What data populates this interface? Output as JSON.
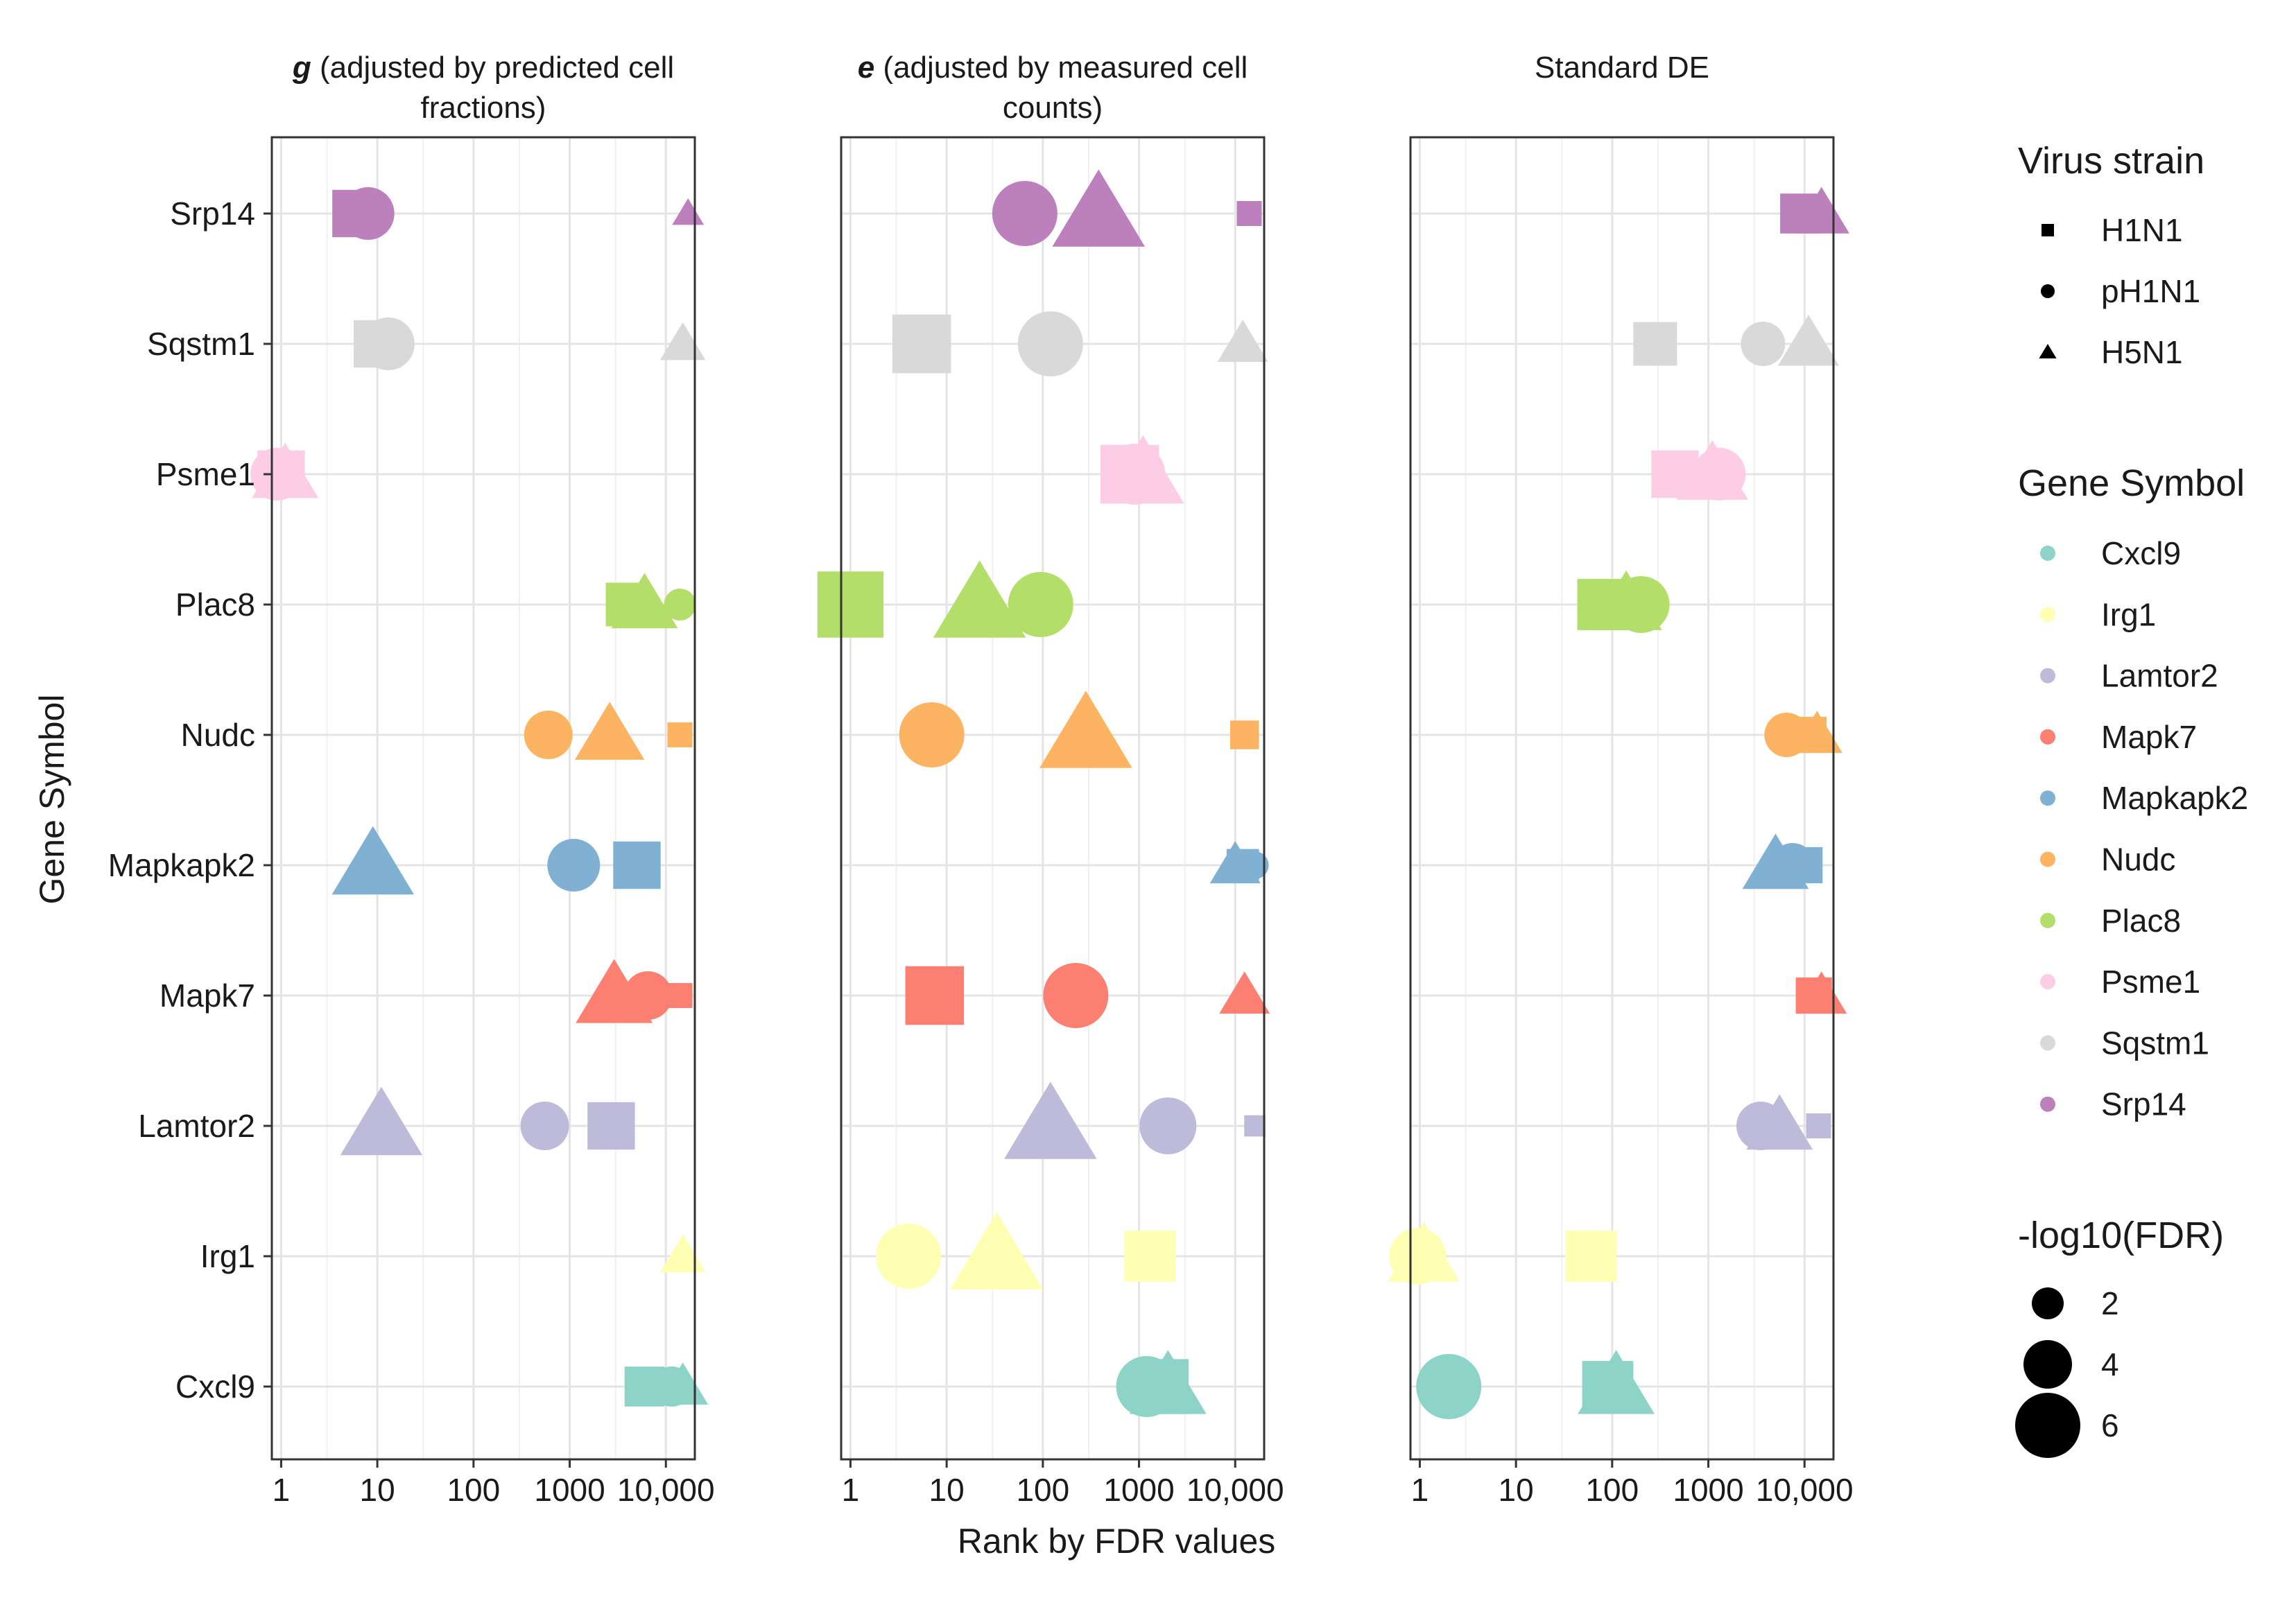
{
  "chart_data": {
    "type": "scatter",
    "xlabel": "Rank by FDR values",
    "ylabel": "Gene Symbol",
    "x_scale": "log10",
    "xlim": [
      0.8,
      20000
    ],
    "x_ticks": [
      1,
      10,
      100,
      1000,
      10000
    ],
    "x_tick_labels": [
      "1",
      "10",
      "100",
      "1000",
      "10,000"
    ],
    "genes": [
      "Srp14",
      "Sqstm1",
      "Psme1",
      "Plac8",
      "Nudc",
      "Mapkapk2",
      "Mapk7",
      "Lamtor2",
      "Irg1",
      "Cxcl9"
    ],
    "gene_colors": {
      "Cxcl9": "#8dd3c7",
      "Irg1": "#ffffb3",
      "Lamtor2": "#bebada",
      "Mapk7": "#fb8072",
      "Mapkapk2": "#80b1d3",
      "Nudc": "#fdb462",
      "Plac8": "#b3de69",
      "Psme1": "#fccde5",
      "Sqstm1": "#d9d9d9",
      "Srp14": "#bc80bd"
    },
    "panels": [
      {
        "title_bold": "g",
        "title_line1": " (adjusted by predicted cell",
        "title_line2": "fractions)",
        "points": [
          {
            "gene": "Srp14",
            "strain": "H1N1",
            "rank": 6,
            "fdr": 4.5
          },
          {
            "gene": "Srp14",
            "strain": "pH1N1",
            "rank": 8,
            "fdr": 4.5
          },
          {
            "gene": "Srp14",
            "strain": "H5N1",
            "rank": 17000,
            "fdr": 1.2
          },
          {
            "gene": "Sqstm1",
            "strain": "H1N1",
            "rank": 10,
            "fdr": 4.5
          },
          {
            "gene": "Sqstm1",
            "strain": "pH1N1",
            "rank": 13,
            "fdr": 4.5
          },
          {
            "gene": "Sqstm1",
            "strain": "H5N1",
            "rank": 15000,
            "fdr": 2.5
          },
          {
            "gene": "Psme1",
            "strain": "pH1N1",
            "rank": 0.9,
            "fdr": 4.5
          },
          {
            "gene": "Psme1",
            "strain": "H1N1",
            "rank": 1,
            "fdr": 4.5
          },
          {
            "gene": "Psme1",
            "strain": "H5N1",
            "rank": 1.1,
            "fdr": 4.5
          },
          {
            "gene": "Plac8",
            "strain": "H1N1",
            "rank": 4000,
            "fdr": 4
          },
          {
            "gene": "Plac8",
            "strain": "H5N1",
            "rank": 6000,
            "fdr": 4.5
          },
          {
            "gene": "Plac8",
            "strain": "pH1N1",
            "rank": 14000,
            "fdr": 2
          },
          {
            "gene": "Nudc",
            "strain": "pH1N1",
            "rank": 600,
            "fdr": 4
          },
          {
            "gene": "Nudc",
            "strain": "H5N1",
            "rank": 2600,
            "fdr": 4.8
          },
          {
            "gene": "Nudc",
            "strain": "H1N1",
            "rank": 14000,
            "fdr": 1.5
          },
          {
            "gene": "Mapkapk2",
            "strain": "H5N1",
            "rank": 9,
            "fdr": 6
          },
          {
            "gene": "Mapkapk2",
            "strain": "pH1N1",
            "rank": 1100,
            "fdr": 4.5
          },
          {
            "gene": "Mapkapk2",
            "strain": "H1N1",
            "rank": 5000,
            "fdr": 4.5
          },
          {
            "gene": "Mapk7",
            "strain": "H5N1",
            "rank": 2900,
            "fdr": 5.5
          },
          {
            "gene": "Mapk7",
            "strain": "pH1N1",
            "rank": 6500,
            "fdr": 4
          },
          {
            "gene": "Mapk7",
            "strain": "H1N1",
            "rank": 14000,
            "fdr": 1.5
          },
          {
            "gene": "Lamtor2",
            "strain": "H5N1",
            "rank": 11,
            "fdr": 6
          },
          {
            "gene": "Lamtor2",
            "strain": "pH1N1",
            "rank": 550,
            "fdr": 4
          },
          {
            "gene": "Lamtor2",
            "strain": "H1N1",
            "rank": 2700,
            "fdr": 4.5
          },
          {
            "gene": "Irg1",
            "strain": "H5N1",
            "rank": 15000,
            "fdr": 2.5
          },
          {
            "gene": "Cxcl9",
            "strain": "H1N1",
            "rank": 6000,
            "fdr": 3.5
          },
          {
            "gene": "Cxcl9",
            "strain": "pH1N1",
            "rank": 11500,
            "fdr": 3
          },
          {
            "gene": "Cxcl9",
            "strain": "H5N1",
            "rank": 15000,
            "fdr": 3
          }
        ]
      },
      {
        "title_bold": "e",
        "title_line1": " (adjusted by measured cell",
        "title_line2": "counts)",
        "points": [
          {
            "gene": "Srp14",
            "strain": "pH1N1",
            "rank": 65,
            "fdr": 6
          },
          {
            "gene": "Srp14",
            "strain": "H5N1",
            "rank": 380,
            "fdr": 7
          },
          {
            "gene": "Srp14",
            "strain": "H1N1",
            "rank": 14000,
            "fdr": 1.5
          },
          {
            "gene": "Sqstm1",
            "strain": "H1N1",
            "rank": 5.5,
            "fdr": 6
          },
          {
            "gene": "Sqstm1",
            "strain": "pH1N1",
            "rank": 120,
            "fdr": 6
          },
          {
            "gene": "Sqstm1",
            "strain": "H5N1",
            "rank": 12000,
            "fdr": 3
          },
          {
            "gene": "Psme1",
            "strain": "H1N1",
            "rank": 800,
            "fdr": 6
          },
          {
            "gene": "Psme1",
            "strain": "pH1N1",
            "rank": 900,
            "fdr": 5.5
          },
          {
            "gene": "Psme1",
            "strain": "H5N1",
            "rank": 1100,
            "fdr": 6
          },
          {
            "gene": "Plac8",
            "strain": "H1N1",
            "rank": 1,
            "fdr": 7
          },
          {
            "gene": "Plac8",
            "strain": "H5N1",
            "rank": 22,
            "fdr": 7
          },
          {
            "gene": "Plac8",
            "strain": "pH1N1",
            "rank": 95,
            "fdr": 6
          },
          {
            "gene": "Nudc",
            "strain": "pH1N1",
            "rank": 7,
            "fdr": 6
          },
          {
            "gene": "Nudc",
            "strain": "H5N1",
            "rank": 280,
            "fdr": 7
          },
          {
            "gene": "Nudc",
            "strain": "H1N1",
            "rank": 12500,
            "fdr": 2
          },
          {
            "gene": "Mapkapk2",
            "strain": "H5N1",
            "rank": 10000,
            "fdr": 3
          },
          {
            "gene": "Mapkapk2",
            "strain": "H1N1",
            "rank": 12000,
            "fdr": 2.5
          },
          {
            "gene": "Mapkapk2",
            "strain": "pH1N1",
            "rank": 16000,
            "fdr": 1.5
          },
          {
            "gene": "Mapk7",
            "strain": "H1N1",
            "rank": 7.5,
            "fdr": 6
          },
          {
            "gene": "Mapk7",
            "strain": "pH1N1",
            "rank": 220,
            "fdr": 6
          },
          {
            "gene": "Mapk7",
            "strain": "H5N1",
            "rank": 12500,
            "fdr": 3
          },
          {
            "gene": "Lamtor2",
            "strain": "H5N1",
            "rank": 120,
            "fdr": 7
          },
          {
            "gene": "Lamtor2",
            "strain": "pH1N1",
            "rank": 2000,
            "fdr": 5
          },
          {
            "gene": "Lamtor2",
            "strain": "H1N1",
            "rank": 16000,
            "fdr": 1
          },
          {
            "gene": "Irg1",
            "strain": "pH1N1",
            "rank": 4,
            "fdr": 6
          },
          {
            "gene": "Irg1",
            "strain": "H5N1",
            "rank": 33,
            "fdr": 7
          },
          {
            "gene": "Irg1",
            "strain": "H1N1",
            "rank": 1300,
            "fdr": 5
          },
          {
            "gene": "Cxcl9",
            "strain": "pH1N1",
            "rank": 1200,
            "fdr": 5.5
          },
          {
            "gene": "Cxcl9",
            "strain": "H1N1",
            "rank": 1700,
            "fdr": 5.5
          },
          {
            "gene": "Cxcl9",
            "strain": "H5N1",
            "rank": 2000,
            "fdr": 5.5
          }
        ]
      },
      {
        "title_bold": "",
        "title_line1": "Standard DE",
        "title_line2": "",
        "points": [
          {
            "gene": "Srp14",
            "strain": "H1N1",
            "rank": 9000,
            "fdr": 3.5
          },
          {
            "gene": "Srp14",
            "strain": "H5N1",
            "rank": 15000,
            "fdr": 3.5
          },
          {
            "gene": "Sqstm1",
            "strain": "H1N1",
            "rank": 280,
            "fdr": 4
          },
          {
            "gene": "Sqstm1",
            "strain": "pH1N1",
            "rank": 3700,
            "fdr": 3.5
          },
          {
            "gene": "Sqstm1",
            "strain": "H5N1",
            "rank": 11000,
            "fdr": 4
          },
          {
            "gene": "Psme1",
            "strain": "H1N1",
            "rank": 450,
            "fdr": 4.5
          },
          {
            "gene": "Psme1",
            "strain": "H5N1",
            "rank": 1100,
            "fdr": 5
          },
          {
            "gene": "Psme1",
            "strain": "pH1N1",
            "rank": 1300,
            "fdr": 4.5
          },
          {
            "gene": "Plac8",
            "strain": "H1N1",
            "rank": 80,
            "fdr": 5
          },
          {
            "gene": "Plac8",
            "strain": "H5N1",
            "rank": 140,
            "fdr": 5
          },
          {
            "gene": "Plac8",
            "strain": "pH1N1",
            "rank": 200,
            "fdr": 5
          },
          {
            "gene": "Nudc",
            "strain": "pH1N1",
            "rank": 6500,
            "fdr": 3.5
          },
          {
            "gene": "Nudc",
            "strain": "H1N1",
            "rank": 11000,
            "fdr": 3
          },
          {
            "gene": "Nudc",
            "strain": "H5N1",
            "rank": 13500,
            "fdr": 3
          },
          {
            "gene": "Mapkapk2",
            "strain": "H5N1",
            "rank": 5000,
            "fdr": 4.5
          },
          {
            "gene": "Mapkapk2",
            "strain": "pH1N1",
            "rank": 7500,
            "fdr": 3.5
          },
          {
            "gene": "Mapkapk2",
            "strain": "H1N1",
            "rank": 10000,
            "fdr": 3
          },
          {
            "gene": "Mapk7",
            "strain": "H1N1",
            "rank": 12500,
            "fdr": 3
          },
          {
            "gene": "Mapk7",
            "strain": "H5N1",
            "rank": 15000,
            "fdr": 3
          },
          {
            "gene": "Lamtor2",
            "strain": "pH1N1",
            "rank": 3500,
            "fdr": 4
          },
          {
            "gene": "Lamtor2",
            "strain": "H5N1",
            "rank": 5500,
            "fdr": 4.5
          },
          {
            "gene": "Lamtor2",
            "strain": "H1N1",
            "rank": 14000,
            "fdr": 1.5
          },
          {
            "gene": "Irg1",
            "strain": "pH1N1",
            "rank": 0.95,
            "fdr": 5
          },
          {
            "gene": "Irg1",
            "strain": "H5N1",
            "rank": 1.1,
            "fdr": 5
          },
          {
            "gene": "Irg1",
            "strain": "H1N1",
            "rank": 60,
            "fdr": 5
          },
          {
            "gene": "Cxcl9",
            "strain": "pH1N1",
            "rank": 2,
            "fdr": 6
          },
          {
            "gene": "Cxcl9",
            "strain": "H1N1",
            "rank": 90,
            "fdr": 5
          },
          {
            "gene": "Cxcl9",
            "strain": "H5N1",
            "rank": 110,
            "fdr": 5.5
          }
        ]
      }
    ],
    "legend": {
      "strain_title": "Virus strain",
      "strains": [
        "H1N1",
        "pH1N1",
        "H5N1"
      ],
      "strain_shapes": {
        "H1N1": "square",
        "pH1N1": "circle",
        "H5N1": "triangle"
      },
      "gene_title": "Gene Symbol",
      "gene_order": [
        "Cxcl9",
        "Irg1",
        "Lamtor2",
        "Mapk7",
        "Mapkapk2",
        "Nudc",
        "Plac8",
        "Psme1",
        "Sqstm1",
        "Srp14"
      ],
      "size_title": "-log10(FDR)",
      "size_values": [
        2,
        4,
        6
      ]
    }
  }
}
